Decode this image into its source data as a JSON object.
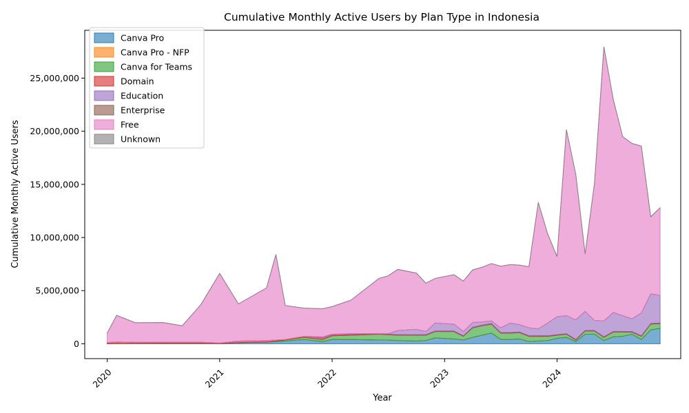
{
  "chart_data": {
    "type": "area",
    "stacked": true,
    "title": "Cumulative Monthly Active Users by Plan Type in Indonesia",
    "xlabel": "Year",
    "ylabel": "Cumulative Monthly Active Users",
    "x_ticks": [
      "2020",
      "2021",
      "2022",
      "2023",
      "2024"
    ],
    "x_start": "2020-01",
    "y_ticks": [
      "0",
      "5,000,000",
      "10,000,000",
      "15,000,000",
      "20,000,000",
      "25,000,000"
    ],
    "ylim": [
      -1400000,
      29500000
    ],
    "legend_position": "top-left",
    "x": [
      "2020-01",
      "2020-02",
      "2020-04",
      "2020-07",
      "2020-09",
      "2020-11",
      "2021-01",
      "2021-03",
      "2021-06",
      "2021-07",
      "2021-08",
      "2021-10",
      "2021-12",
      "2022-01",
      "2022-03",
      "2022-06",
      "2022-07",
      "2022-08",
      "2022-10",
      "2022-11",
      "2022-12",
      "2023-02",
      "2023-03",
      "2023-04",
      "2023-05",
      "2023-06",
      "2023-07",
      "2023-08",
      "2023-09",
      "2023-10",
      "2023-11",
      "2023-12",
      "2024-01",
      "2024-02",
      "2024-03",
      "2024-04",
      "2024-05",
      "2024-06",
      "2024-07",
      "2024-08",
      "2024-09",
      "2024-10",
      "2024-11",
      "2024-12"
    ],
    "series": [
      {
        "name": "Canva Pro",
        "color": "#1f77b4",
        "values": [
          10000,
          20000,
          30000,
          40000,
          40000,
          40000,
          20000,
          100000,
          150000,
          200000,
          250000,
          400000,
          200000,
          400000,
          400000,
          350000,
          350000,
          300000,
          250000,
          300000,
          550000,
          450000,
          350000,
          600000,
          800000,
          1000000,
          400000,
          400000,
          450000,
          200000,
          250000,
          300000,
          500000,
          600000,
          200000,
          900000,
          900000,
          300000,
          650000,
          700000,
          900000,
          400000,
          1300000,
          1450000
        ]
      },
      {
        "name": "Canva Pro - NFP",
        "color": "#ff7f0e",
        "values": [
          0,
          0,
          0,
          0,
          0,
          0,
          0,
          0,
          0,
          0,
          0,
          0,
          0,
          0,
          0,
          0,
          0,
          0,
          0,
          0,
          0,
          0,
          0,
          0,
          0,
          0,
          0,
          0,
          0,
          0,
          0,
          0,
          0,
          0,
          0,
          0,
          0,
          0,
          0,
          0,
          0,
          0,
          0,
          0
        ]
      },
      {
        "name": "Canva for Teams",
        "color": "#2ca02c",
        "values": [
          0,
          0,
          0,
          0,
          0,
          0,
          0,
          0,
          0,
          50000,
          100000,
          200000,
          200000,
          350000,
          400000,
          550000,
          500000,
          500000,
          550000,
          500000,
          600000,
          700000,
          350000,
          900000,
          900000,
          850000,
          600000,
          600000,
          600000,
          500000,
          450000,
          400000,
          300000,
          300000,
          150000,
          300000,
          300000,
          300000,
          450000,
          400000,
          200000,
          300000,
          550000,
          450000
        ]
      },
      {
        "name": "Domain",
        "color": "#d62728",
        "values": [
          100000,
          150000,
          100000,
          100000,
          100000,
          100000,
          50000,
          150000,
          150000,
          100000,
          50000,
          100000,
          150000,
          100000,
          100000,
          50000,
          50000,
          50000,
          50000,
          50000,
          50000,
          50000,
          50000,
          50000,
          50000,
          50000,
          50000,
          50000,
          50000,
          50000,
          50000,
          50000,
          50000,
          50000,
          50000,
          50000,
          50000,
          50000,
          50000,
          50000,
          50000,
          50000,
          50000,
          50000
        ]
      },
      {
        "name": "Education",
        "color": "#9467bd",
        "values": [
          0,
          0,
          0,
          0,
          0,
          0,
          0,
          0,
          0,
          0,
          0,
          0,
          100000,
          50000,
          50000,
          0,
          50000,
          400000,
          500000,
          300000,
          750000,
          650000,
          400000,
          450000,
          300000,
          250000,
          450000,
          900000,
          700000,
          750000,
          650000,
          1200000,
          1700000,
          1700000,
          1850000,
          1800000,
          950000,
          1500000,
          1800000,
          1500000,
          1200000,
          2150000,
          2800000,
          2600000
        ]
      },
      {
        "name": "Enterprise",
        "color": "#8c564b",
        "values": [
          0,
          0,
          0,
          0,
          0,
          0,
          0,
          0,
          0,
          0,
          0,
          0,
          0,
          0,
          0,
          0,
          0,
          0,
          0,
          0,
          0,
          0,
          0,
          0,
          0,
          0,
          0,
          0,
          0,
          0,
          0,
          0,
          0,
          0,
          0,
          0,
          0,
          0,
          0,
          0,
          0,
          0,
          0,
          0
        ]
      },
      {
        "name": "Free",
        "color": "#e377c2",
        "values": [
          900000,
          2500000,
          1850000,
          1850000,
          1550000,
          3550000,
          6550000,
          3500000,
          4950000,
          8050000,
          3200000,
          2650000,
          2650000,
          2600000,
          3150000,
          5200000,
          5450000,
          5750000,
          5300000,
          4550000,
          4200000,
          4650000,
          4750000,
          4950000,
          5150000,
          5400000,
          5800000,
          5500000,
          5600000,
          5750000,
          11900000,
          8400000,
          5650000,
          17500000,
          13700000,
          5400000,
          12950000,
          25800000,
          20050000,
          16850000,
          16500000,
          15700000,
          7250000,
          8250000
        ]
      },
      {
        "name": "Unknown",
        "color": "#7f7f7f",
        "values": [
          0,
          0,
          0,
          0,
          0,
          0,
          0,
          0,
          0,
          0,
          0,
          0,
          0,
          0,
          0,
          0,
          0,
          0,
          0,
          0,
          0,
          0,
          0,
          0,
          0,
          0,
          0,
          0,
          0,
          0,
          0,
          0,
          0,
          0,
          0,
          0,
          0,
          0,
          0,
          0,
          0,
          0,
          0,
          0
        ]
      }
    ]
  }
}
